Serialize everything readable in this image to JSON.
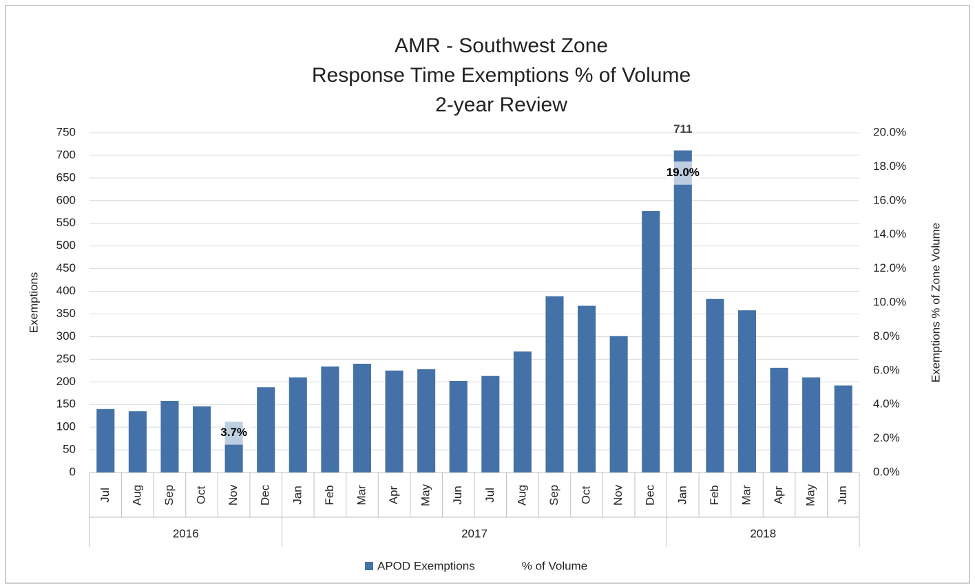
{
  "chart_data": {
    "type": "bar",
    "title": [
      "AMR - Southwest Zone",
      "Response Time Exemptions % of Volume",
      "2-year Review"
    ],
    "categories": [
      "Jul",
      "Aug",
      "Sep",
      "Oct",
      "Nov",
      "Dec",
      "Jan",
      "Feb",
      "Mar",
      "Apr",
      "May",
      "Jun",
      "Jul",
      "Aug",
      "Sep",
      "Oct",
      "Nov",
      "Dec",
      "Jan",
      "Feb",
      "Mar",
      "Apr",
      "May",
      "Jun"
    ],
    "groups": [
      {
        "name": "2016",
        "count": 6
      },
      {
        "name": "2017",
        "count": 12
      },
      {
        "name": "2018",
        "count": 6
      }
    ],
    "series": [
      {
        "name": "APOD Exemptions",
        "color": "#4472a8",
        "values": [
          140,
          135,
          158,
          146,
          112,
          188,
          210,
          234,
          240,
          225,
          228,
          202,
          213,
          267,
          389,
          368,
          301,
          577,
          711,
          383,
          358,
          231,
          210,
          192
        ],
        "value_labels": [
          null,
          null,
          null,
          null,
          null,
          null,
          null,
          null,
          null,
          null,
          null,
          null,
          null,
          null,
          null,
          null,
          null,
          null,
          "711",
          null,
          null,
          null,
          null,
          null
        ]
      },
      {
        "name": "% of Volume",
        "axis": "y2",
        "values": [
          null,
          null,
          null,
          null,
          3.7,
          null,
          null,
          null,
          null,
          null,
          null,
          null,
          null,
          null,
          null,
          null,
          null,
          null,
          19.0,
          null,
          null,
          null,
          null,
          null
        ],
        "value_labels": [
          null,
          null,
          null,
          null,
          "3.7%",
          null,
          null,
          null,
          null,
          null,
          null,
          null,
          null,
          null,
          null,
          null,
          null,
          null,
          "19.0%",
          null,
          null,
          null,
          null,
          null
        ]
      }
    ],
    "ylabel": "Exemptions",
    "y2label": "Exemptions % of Zone Volume",
    "ylim": [
      0,
      750
    ],
    "yticks": [
      0,
      50,
      100,
      150,
      200,
      250,
      300,
      350,
      400,
      450,
      500,
      550,
      600,
      650,
      700,
      750
    ],
    "y2lim": [
      0,
      20
    ],
    "y2ticks": [
      {
        "value": 0,
        "label": "0.0%"
      },
      {
        "value": 2,
        "label": "2.0%"
      },
      {
        "value": 4,
        "label": "4.0%"
      },
      {
        "value": 6,
        "label": "6.0%"
      },
      {
        "value": 8,
        "label": "8.0%"
      },
      {
        "value": 10,
        "label": "10.0%"
      },
      {
        "value": 12,
        "label": "12.0%"
      },
      {
        "value": 14,
        "label": "14.0%"
      },
      {
        "value": 16,
        "label": "16.0%"
      },
      {
        "value": 18,
        "label": "18.0%"
      },
      {
        "value": 20,
        "label": "20.0%"
      }
    ],
    "grid": true,
    "legend": "bottom"
  }
}
